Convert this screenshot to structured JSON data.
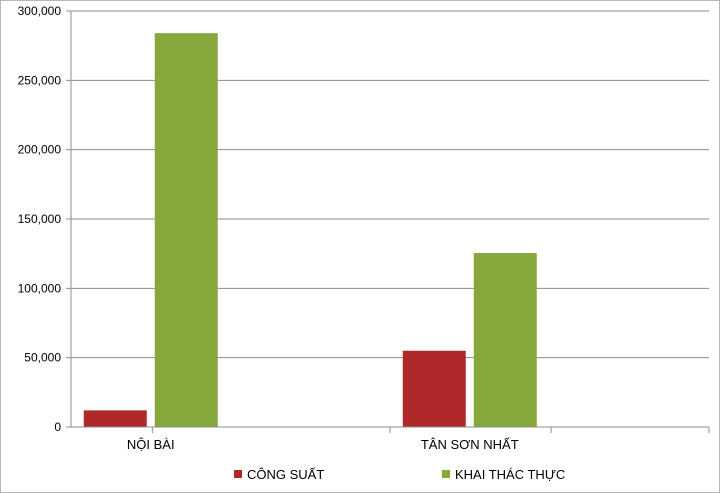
{
  "chart_data": {
    "type": "bar",
    "categories": [
      "NỘI BÀI",
      "TÂN SƠN NHẤT"
    ],
    "series": [
      {
        "name": "CÔNG SUẤT",
        "values": [
          12000,
          55000
        ],
        "color": "#b0292a"
      },
      {
        "name": "KHAI THÁC THỰC",
        "values": [
          284000,
          125500
        ],
        "color": "#86a83a"
      }
    ],
    "title": "",
    "xlabel": "",
    "ylabel": "",
    "ylim": [
      0,
      300000
    ],
    "yticks": [
      "0",
      "50,000",
      "100,000",
      "150,000",
      "200,000",
      "250,000",
      "300,000"
    ],
    "grid": true,
    "legend_position": "bottom"
  }
}
